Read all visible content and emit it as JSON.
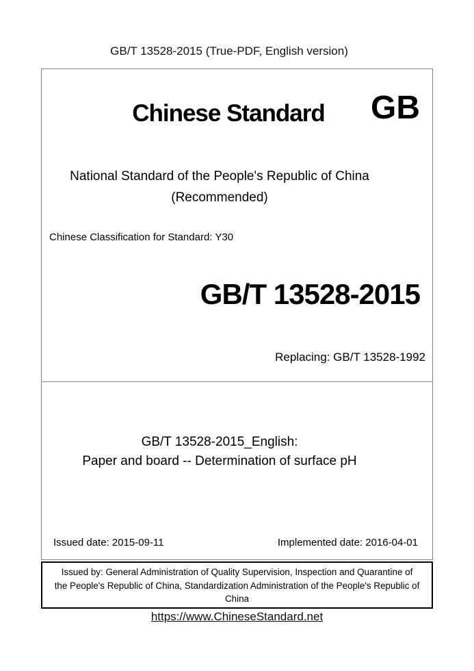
{
  "header": {
    "title": "GB/T 13528-2015 (True-PDF, English version)"
  },
  "cover": {
    "brand_title": "Chinese Standard",
    "gb_logo": "GB",
    "national_line": "National Standard of the People's Republic of China",
    "recommended_line": "(Recommended)",
    "classification": "Chinese Classification for Standard: Y30",
    "standard_code": "GB/T 13528-2015",
    "replacing": "Replacing: GB/T 13528-1992"
  },
  "title": {
    "line1": "GB/T 13528-2015_English:",
    "line2": "Paper and board -- Determination of surface pH"
  },
  "dates": {
    "issued": "Issued date: 2015-09-11",
    "implemented": "Implemented date: 2016-04-01"
  },
  "issuer": {
    "lines": [
      "Issued by: General Administration of Quality Supervision, Inspection and Quarantine of",
      "the People's Republic of China, Standardization Administration of the People's Republic of",
      "China"
    ]
  },
  "footer": {
    "url": "https://www.ChineseStandard.net"
  },
  "colors": {
    "page_background": "#ffffff",
    "text": "#000000",
    "main_box_border": "#808080",
    "issuer_box_border": "#000000"
  }
}
